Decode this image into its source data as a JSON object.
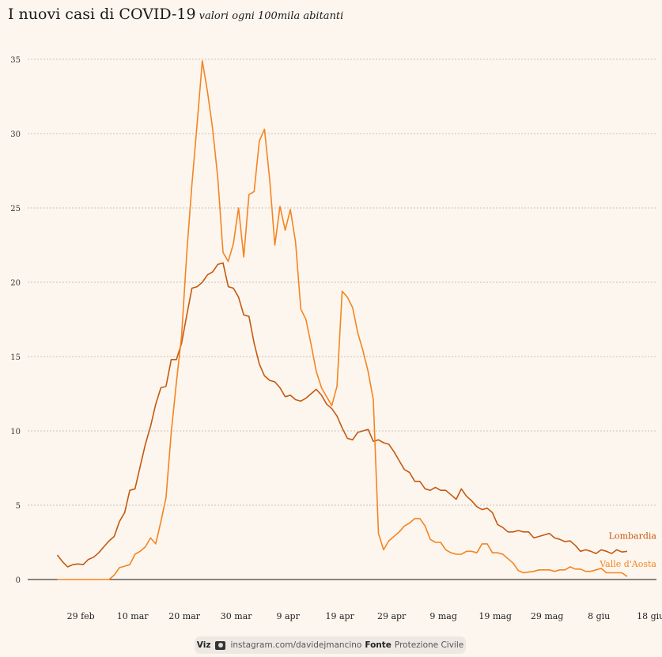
{
  "title": "I nuovi casi di COVID-19",
  "subtitle": "valori ogni 100mila abitanti",
  "credit": {
    "viz_label": "Viz",
    "icon": "instagram-camera-icon",
    "handle": "instagram.com/davidejmancino",
    "source_label": "Fonte",
    "source": "Protezione Civile"
  },
  "colors": {
    "background": "#fdf6ef",
    "lombardia": "#c4590f",
    "valle_daosta": "#f5841f",
    "grid": "#b8b0aa",
    "axis": "#111111"
  },
  "chart_data": {
    "type": "line",
    "title": "I nuovi casi di COVID-19",
    "subtitle": "valori ogni 100mila abitanti",
    "xlabel": "",
    "ylabel": "",
    "ylim": [
      0,
      35
    ],
    "yticks": [
      0,
      5,
      10,
      15,
      20,
      25,
      30,
      35
    ],
    "x_start": "24 feb",
    "x_step_days": 1,
    "xlim_days": [
      -4.5,
      119
    ],
    "xticks": [
      {
        "day": 5,
        "label": "29 feb"
      },
      {
        "day": 15,
        "label": "10 mar"
      },
      {
        "day": 25,
        "label": "20 mar"
      },
      {
        "day": 35,
        "label": "30 mar"
      },
      {
        "day": 45,
        "label": "9 apr"
      },
      {
        "day": 55,
        "label": "19 apr"
      },
      {
        "day": 65,
        "label": "29 apr"
      },
      {
        "day": 75,
        "label": "9 mag"
      },
      {
        "day": 85,
        "label": "19 mag"
      },
      {
        "day": 95,
        "label": "29 mag"
      },
      {
        "day": 105,
        "label": "8 giu"
      },
      {
        "day": 115,
        "label": "18 giu"
      }
    ],
    "grid": true,
    "legend": "end-of-line labels (right)",
    "series": [
      {
        "name": "Lombardia",
        "values": [
          1.65,
          1.2,
          0.85,
          1.0,
          1.05,
          1.0,
          1.35,
          1.5,
          1.8,
          2.2,
          2.6,
          2.9,
          3.9,
          4.5,
          6.0,
          6.1,
          7.6,
          9.1,
          10.3,
          11.8,
          12.9,
          13.0,
          14.8,
          14.8,
          15.9,
          17.8,
          19.6,
          19.7,
          20.0,
          20.5,
          20.7,
          21.2,
          21.3,
          19.7,
          19.6,
          19.0,
          17.8,
          17.7,
          15.9,
          14.5,
          13.7,
          13.4,
          13.3,
          12.9,
          12.3,
          12.4,
          12.1,
          12.0,
          12.2,
          12.5,
          12.8,
          12.4,
          11.8,
          11.5,
          11.0,
          10.2,
          9.5,
          9.4,
          9.9,
          10.0,
          10.1,
          9.3,
          9.4,
          9.2,
          9.1,
          8.6,
          8.0,
          7.4,
          7.2,
          6.6,
          6.6,
          6.1,
          6.0,
          6.2,
          6.0,
          6.0,
          5.7,
          5.4,
          6.1,
          5.6,
          5.3,
          4.9,
          4.7,
          4.8,
          4.5,
          3.7,
          3.5,
          3.2,
          3.2,
          3.3,
          3.2,
          3.2,
          2.8,
          2.9,
          3.0,
          3.1,
          2.8,
          2.7,
          2.55,
          2.6,
          2.3,
          1.9,
          2.0,
          1.9,
          1.75,
          2.0,
          1.9,
          1.75,
          2.0,
          1.85,
          1.9
        ],
        "color": "#c4590f"
      },
      {
        "name": "Valle d'Aosta",
        "values": [
          0,
          0,
          0,
          0,
          0,
          0,
          0,
          0,
          0,
          0,
          0,
          0.3,
          0.8,
          0.9,
          1.0,
          1.7,
          1.9,
          2.2,
          2.8,
          2.4,
          3.9,
          5.5,
          9.9,
          13.3,
          16.4,
          22.0,
          26.6,
          30.7,
          34.9,
          32.8,
          30.3,
          27.0,
          22.0,
          21.4,
          22.6,
          25.0,
          21.7,
          25.9,
          26.1,
          29.5,
          30.3,
          26.9,
          22.5,
          25.1,
          23.5,
          24.9,
          22.7,
          18.2,
          17.5,
          15.8,
          14.0,
          12.9,
          12.3,
          11.7,
          13.0,
          19.4,
          19.0,
          18.3,
          16.6,
          15.4,
          14.0,
          12.1,
          3.1,
          2.0,
          2.6,
          2.9,
          3.2,
          3.6,
          3.8,
          4.1,
          4.1,
          3.6,
          2.7,
          2.5,
          2.5,
          2.0,
          1.8,
          1.7,
          1.7,
          1.9,
          1.9,
          1.8,
          2.4,
          2.4,
          1.8,
          1.8,
          1.7,
          1.4,
          1.1,
          0.6,
          0.45,
          0.5,
          0.55,
          0.65,
          0.65,
          0.65,
          0.55,
          0.65,
          0.65,
          0.85,
          0.7,
          0.7,
          0.55,
          0.55,
          0.65,
          0.75,
          0.45,
          0.45,
          0.45,
          0.45,
          0.2
        ],
        "color": "#f5841f"
      }
    ]
  }
}
